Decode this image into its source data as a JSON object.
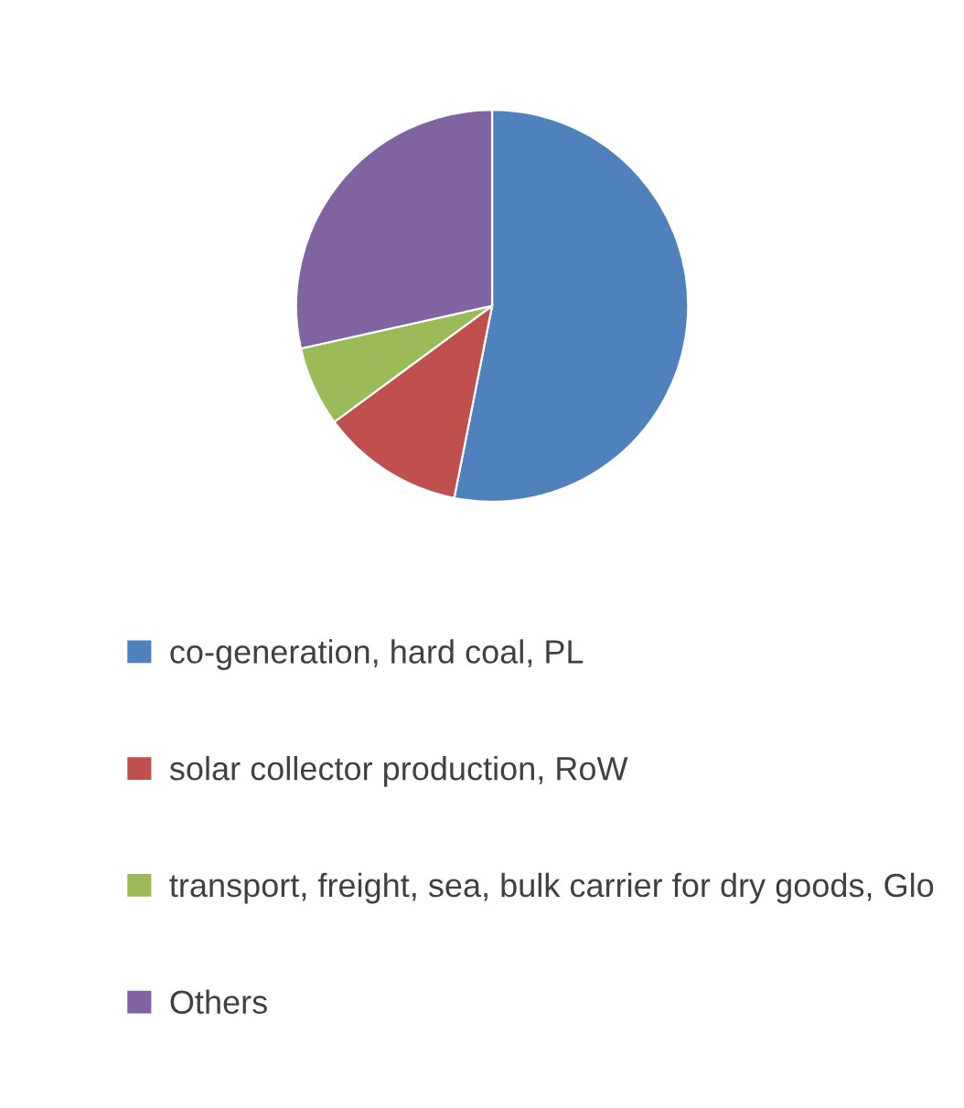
{
  "chart_data": {
    "type": "pie",
    "categories": [
      "co-generation, hard coal, PL",
      "solar collector production, RoW",
      "transport, freight, sea, bulk carrier for dry goods, Glo",
      "Others"
    ],
    "values": [
      53.1,
      11.8,
      6.6,
      28.5
    ],
    "colors": [
      "#4f81bd",
      "#c0504d",
      "#9bbb59",
      "#8064a2"
    ],
    "legend": "bottom"
  }
}
